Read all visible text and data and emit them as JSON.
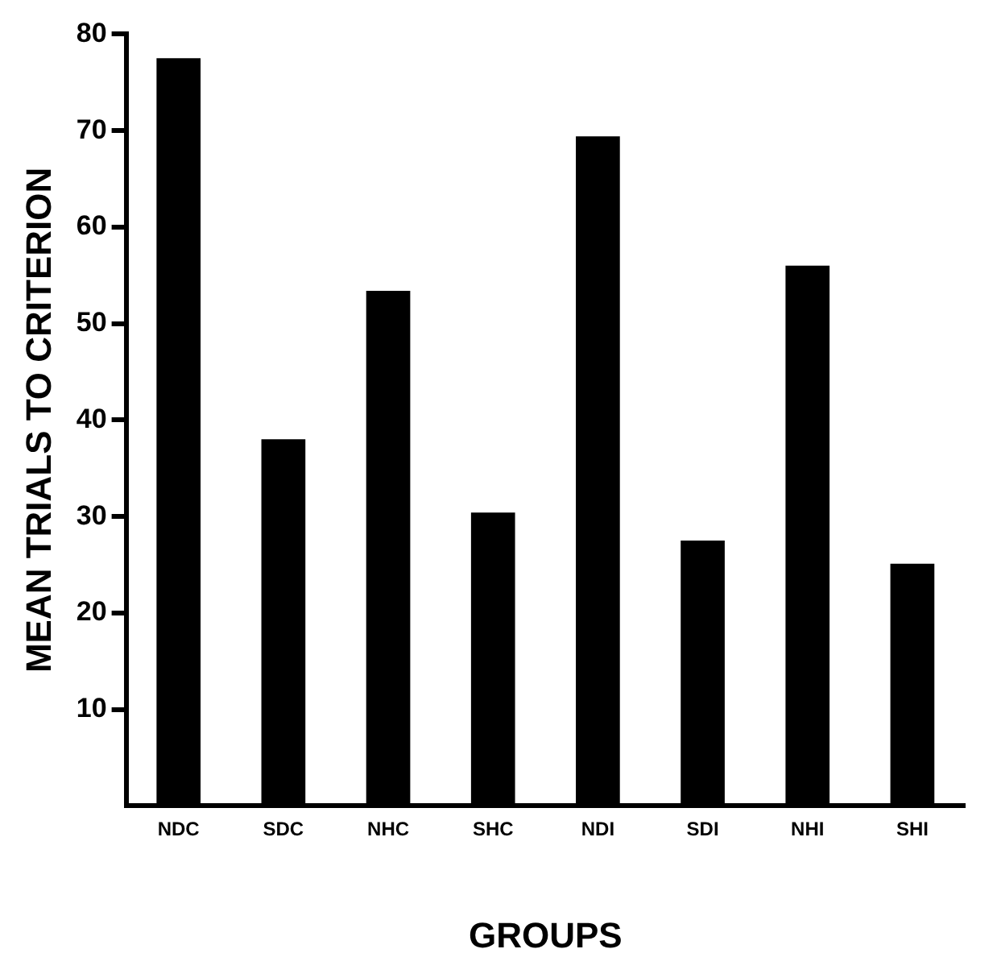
{
  "chart_data": {
    "type": "bar",
    "xlabel": "GROUPS",
    "ylabel": "MEAN TRIALS TO CRITERION",
    "categories": [
      "NDC",
      "SDC",
      "NHC",
      "SHC",
      "NDI",
      "SDI",
      "NHI",
      "SHI"
    ],
    "values": [
      77.5,
      38.0,
      53.4,
      30.4,
      69.4,
      27.5,
      56.0,
      25.1
    ],
    "color": "#000000",
    "ylim": [
      0,
      80
    ],
    "yticks": [
      10,
      20,
      30,
      40,
      50,
      60,
      70,
      80
    ],
    "grid": false,
    "legend": false
  }
}
